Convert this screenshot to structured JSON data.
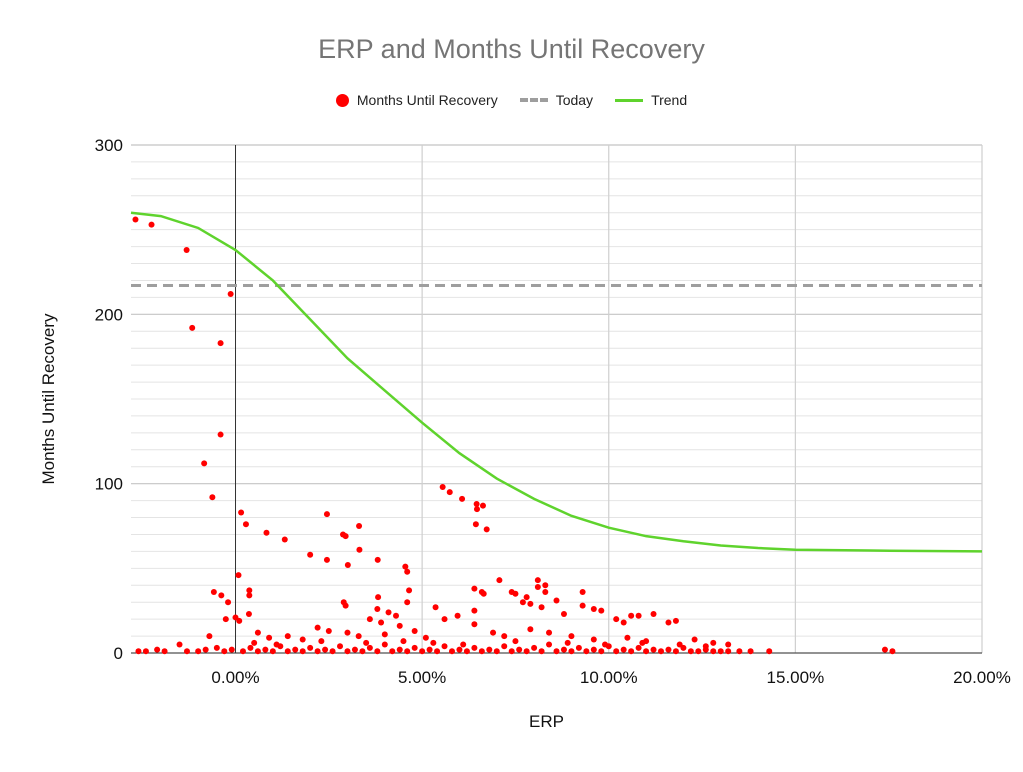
{
  "chart_data": {
    "type": "scatter",
    "title": "ERP and Months Until Recovery",
    "xlabel": "ERP",
    "ylabel": "Months Until Recovery",
    "xlim": [
      -2.8,
      20
    ],
    "ylim": [
      0,
      300
    ],
    "grid": true,
    "legend_position": "top",
    "x_ticks": [
      {
        "v": 0,
        "label": "0.00%"
      },
      {
        "v": 5,
        "label": "5.00%"
      },
      {
        "v": 10,
        "label": "10.00%"
      },
      {
        "v": 15,
        "label": "15.00%"
      },
      {
        "v": 20,
        "label": "20.00%"
      }
    ],
    "y_ticks": [
      {
        "v": 0,
        "label": "0"
      },
      {
        "v": 100,
        "label": "100"
      },
      {
        "v": 200,
        "label": "200"
      },
      {
        "v": 300,
        "label": "300"
      }
    ],
    "colors": {
      "scatter": "#ff0000",
      "today": "#9e9e9e",
      "trend": "#5fd32d"
    },
    "series": [
      {
        "name": "Months Until Recovery",
        "type": "scatter",
        "points": [
          [
            -2.68,
            256
          ],
          [
            -2.25,
            253
          ],
          [
            -1.31,
            238
          ],
          [
            -0.13,
            212
          ],
          [
            -1.16,
            192
          ],
          [
            -0.4,
            183
          ],
          [
            -0.4,
            129
          ],
          [
            -0.84,
            112
          ],
          [
            -0.62,
            92
          ],
          [
            0.15,
            83
          ],
          [
            0.28,
            76
          ],
          [
            0.83,
            71
          ],
          [
            1.32,
            67
          ],
          [
            2.0,
            58
          ],
          [
            2.45,
            82
          ],
          [
            2.45,
            55
          ],
          [
            2.88,
            70
          ],
          [
            2.95,
            69
          ],
          [
            3.31,
            75
          ],
          [
            3.32,
            61
          ],
          [
            3.01,
            52
          ],
          [
            3.81,
            55
          ],
          [
            4.55,
            51
          ],
          [
            4.6,
            48
          ],
          [
            0.08,
            46
          ],
          [
            -0.58,
            36
          ],
          [
            -0.38,
            34
          ],
          [
            -0.2,
            30
          ],
          [
            0.37,
            37
          ],
          [
            0.37,
            34
          ],
          [
            0.36,
            23
          ],
          [
            -0.26,
            20
          ],
          [
            0,
            21
          ],
          [
            0.1,
            19
          ],
          [
            2.9,
            30
          ],
          [
            2.95,
            28
          ],
          [
            3.82,
            33
          ],
          [
            4.65,
            37
          ],
          [
            4.6,
            30
          ],
          [
            5.55,
            98
          ],
          [
            5.74,
            95
          ],
          [
            6.07,
            91
          ],
          [
            6.46,
            88
          ],
          [
            6.47,
            85
          ],
          [
            6.63,
            87
          ],
          [
            6.44,
            76
          ],
          [
            6.73,
            73
          ],
          [
            7.07,
            43
          ],
          [
            6.4,
            38
          ],
          [
            6.6,
            36
          ],
          [
            6.65,
            35
          ],
          [
            7.4,
            36
          ],
          [
            7.5,
            35
          ],
          [
            7.8,
            33
          ],
          [
            7.7,
            30
          ],
          [
            8.1,
            43
          ],
          [
            8.1,
            39
          ],
          [
            8.3,
            40
          ],
          [
            8.3,
            36
          ],
          [
            7.9,
            29
          ],
          [
            8.2,
            27
          ],
          [
            8.6,
            31
          ],
          [
            9.3,
            36
          ],
          [
            9.3,
            28
          ],
          [
            9.6,
            26
          ],
          [
            9.8,
            25
          ],
          [
            8.8,
            23
          ],
          [
            11.2,
            23
          ],
          [
            10.6,
            22
          ],
          [
            10.8,
            22
          ],
          [
            11.8,
            19
          ],
          [
            11.6,
            18
          ],
          [
            10.2,
            20
          ],
          [
            10.4,
            18
          ],
          [
            5.36,
            27
          ],
          [
            5.6,
            20
          ],
          [
            5.95,
            22
          ],
          [
            6.4,
            25
          ],
          [
            6.4,
            17
          ],
          [
            3.8,
            26
          ],
          [
            4.1,
            24
          ],
          [
            4.3,
            22
          ],
          [
            3.6,
            20
          ],
          [
            3.9,
            18
          ],
          [
            4.4,
            16
          ],
          [
            2.2,
            15
          ],
          [
            2.5,
            13
          ],
          [
            1.4,
            10
          ],
          [
            1.8,
            8
          ],
          [
            3.0,
            12
          ],
          [
            3.3,
            10
          ],
          [
            4.0,
            11
          ],
          [
            4.8,
            13
          ],
          [
            5.1,
            9
          ],
          [
            6.9,
            12
          ],
          [
            7.2,
            10
          ],
          [
            7.9,
            14
          ],
          [
            8.4,
            12
          ],
          [
            9.0,
            10
          ],
          [
            9.6,
            8
          ],
          [
            10.5,
            9
          ],
          [
            11.0,
            7
          ],
          [
            12.3,
            8
          ],
          [
            12.8,
            6
          ],
          [
            13.2,
            5
          ],
          [
            0.6,
            12
          ],
          [
            0.9,
            9
          ],
          [
            -0.7,
            10
          ],
          [
            -1.5,
            5
          ],
          [
            -2.6,
            1
          ],
          [
            -2.4,
            1
          ],
          [
            -2.1,
            2
          ],
          [
            -1.9,
            1
          ],
          [
            -1.3,
            1
          ],
          [
            -1.0,
            1
          ],
          [
            -0.8,
            2
          ],
          [
            -0.5,
            3
          ],
          [
            -0.3,
            1
          ],
          [
            -0.1,
            2
          ],
          [
            0.2,
            1
          ],
          [
            0.4,
            3
          ],
          [
            0.6,
            1
          ],
          [
            0.8,
            2
          ],
          [
            1.0,
            1
          ],
          [
            1.2,
            4
          ],
          [
            1.4,
            1
          ],
          [
            1.6,
            2
          ],
          [
            1.8,
            1
          ],
          [
            2.0,
            3
          ],
          [
            2.2,
            1
          ],
          [
            2.4,
            2
          ],
          [
            2.6,
            1
          ],
          [
            2.8,
            4
          ],
          [
            3.0,
            1
          ],
          [
            3.2,
            2
          ],
          [
            3.4,
            1
          ],
          [
            3.6,
            3
          ],
          [
            3.8,
            1
          ],
          [
            4.0,
            5
          ],
          [
            4.2,
            1
          ],
          [
            4.4,
            2
          ],
          [
            4.6,
            1
          ],
          [
            4.8,
            3
          ],
          [
            5.0,
            1
          ],
          [
            5.2,
            2
          ],
          [
            5.4,
            1
          ],
          [
            5.6,
            4
          ],
          [
            5.8,
            1
          ],
          [
            6.0,
            2
          ],
          [
            6.2,
            1
          ],
          [
            6.4,
            3
          ],
          [
            6.6,
            1
          ],
          [
            6.8,
            2
          ],
          [
            7.0,
            1
          ],
          [
            7.2,
            4
          ],
          [
            7.4,
            1
          ],
          [
            7.6,
            2
          ],
          [
            7.8,
            1
          ],
          [
            8.0,
            3
          ],
          [
            8.2,
            1
          ],
          [
            8.4,
            5
          ],
          [
            8.6,
            1
          ],
          [
            8.8,
            2
          ],
          [
            9.0,
            1
          ],
          [
            9.2,
            3
          ],
          [
            9.4,
            1
          ],
          [
            9.6,
            2
          ],
          [
            9.8,
            1
          ],
          [
            10.0,
            4
          ],
          [
            10.2,
            1
          ],
          [
            10.4,
            2
          ],
          [
            10.6,
            1
          ],
          [
            10.8,
            3
          ],
          [
            11.0,
            1
          ],
          [
            11.2,
            2
          ],
          [
            11.4,
            1
          ],
          [
            11.6,
            2
          ],
          [
            11.8,
            1
          ],
          [
            12.0,
            3
          ],
          [
            12.2,
            1
          ],
          [
            12.4,
            1
          ],
          [
            12.6,
            2
          ],
          [
            12.8,
            1
          ],
          [
            13.0,
            1
          ],
          [
            13.2,
            1
          ],
          [
            13.5,
            1
          ],
          [
            13.8,
            1
          ],
          [
            14.3,
            1
          ],
          [
            17.4,
            2
          ],
          [
            17.6,
            1
          ],
          [
            0.5,
            6
          ],
          [
            1.1,
            5
          ],
          [
            2.3,
            7
          ],
          [
            3.5,
            6
          ],
          [
            4.5,
            7
          ],
          [
            5.3,
            6
          ],
          [
            6.1,
            5
          ],
          [
            7.5,
            7
          ],
          [
            8.9,
            6
          ],
          [
            9.9,
            5
          ],
          [
            10.9,
            6
          ],
          [
            11.9,
            5
          ],
          [
            12.6,
            4
          ]
        ]
      },
      {
        "name": "Today",
        "type": "hline",
        "value": 217
      },
      {
        "name": "Trend",
        "type": "line",
        "points": [
          [
            -2.8,
            260
          ],
          [
            -2,
            258
          ],
          [
            -1,
            251
          ],
          [
            0,
            238
          ],
          [
            1,
            220
          ],
          [
            2,
            197
          ],
          [
            3,
            174
          ],
          [
            4,
            155
          ],
          [
            5,
            136
          ],
          [
            6,
            118
          ],
          [
            7,
            103
          ],
          [
            8,
            91
          ],
          [
            9,
            81
          ],
          [
            10,
            74
          ],
          [
            11,
            69
          ],
          [
            12,
            66
          ],
          [
            13,
            63.5
          ],
          [
            14,
            62
          ],
          [
            15,
            61
          ],
          [
            17,
            60.5
          ],
          [
            20,
            60
          ]
        ]
      }
    ]
  }
}
